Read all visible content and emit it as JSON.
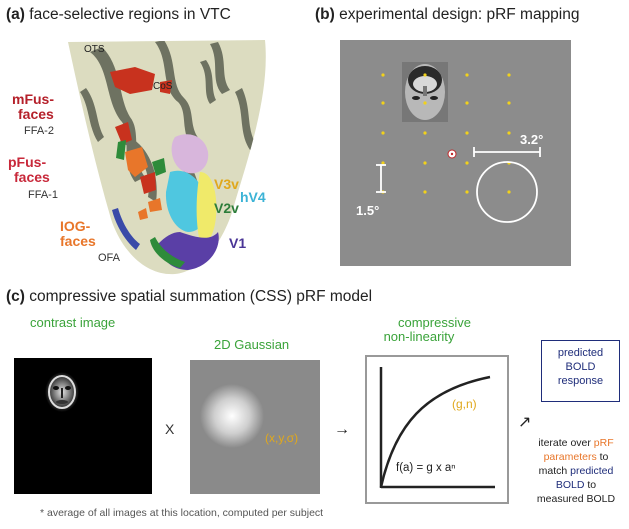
{
  "panel_a": {
    "letter": "(a)",
    "title": "face-selective regions in VTC",
    "labels": {
      "ots": "OTS",
      "cos": "CoS",
      "mfus_1": "mFus-",
      "mfus_2": "faces",
      "ffa2": "FFA-2",
      "pfus_1": "pFus-",
      "pfus_2": "faces",
      "ffa1": "FFA-1",
      "iog_1": "IOG-",
      "iog_2": "faces",
      "ofa": "OFA",
      "v3v": "V3v",
      "hv4": "hV4",
      "v2v": "V2v",
      "v1": "V1"
    },
    "colors": {
      "mfus": "#b5202a",
      "pfus": "#c8283a",
      "iog": "#e8762a",
      "v3v": "#e0a81c",
      "hv4": "#3bb3d6",
      "v2v": "#2d7d3a",
      "v1": "#4a3596"
    }
  },
  "panel_b": {
    "letter": "(b)",
    "title": "experimental design: pRF mapping",
    "size_label": "3.2°",
    "spacing_label": "1.5°",
    "dot_color": "#f2d21a"
  },
  "panel_c": {
    "letter": "(c)",
    "title": "compressive spatial summation (CSS) pRF model",
    "contrast_label": "contrast image",
    "gaussian_label": "2D Gaussian",
    "gaussian_params": "(x,y,σ)",
    "nonlin_label_1": "compressive",
    "nonlin_label_2": "non-linearity",
    "nonlin_params": "(g,n)",
    "formula": "f(a) = g x aⁿ",
    "times": "X",
    "predicted_1": "predicted",
    "predicted_2": "BOLD",
    "predicted_3": "response",
    "iterate_1a": "iterate over ",
    "iterate_1b": "pRF",
    "iterate_2": "parameters",
    "iterate_2b": " to",
    "iterate_3a": "match ",
    "iterate_3b": "predicted",
    "iterate_4a": "BOLD",
    "iterate_4b": " to",
    "iterate_5": "measured BOLD",
    "footnote": "* average of all images at this location, computed per subject"
  }
}
